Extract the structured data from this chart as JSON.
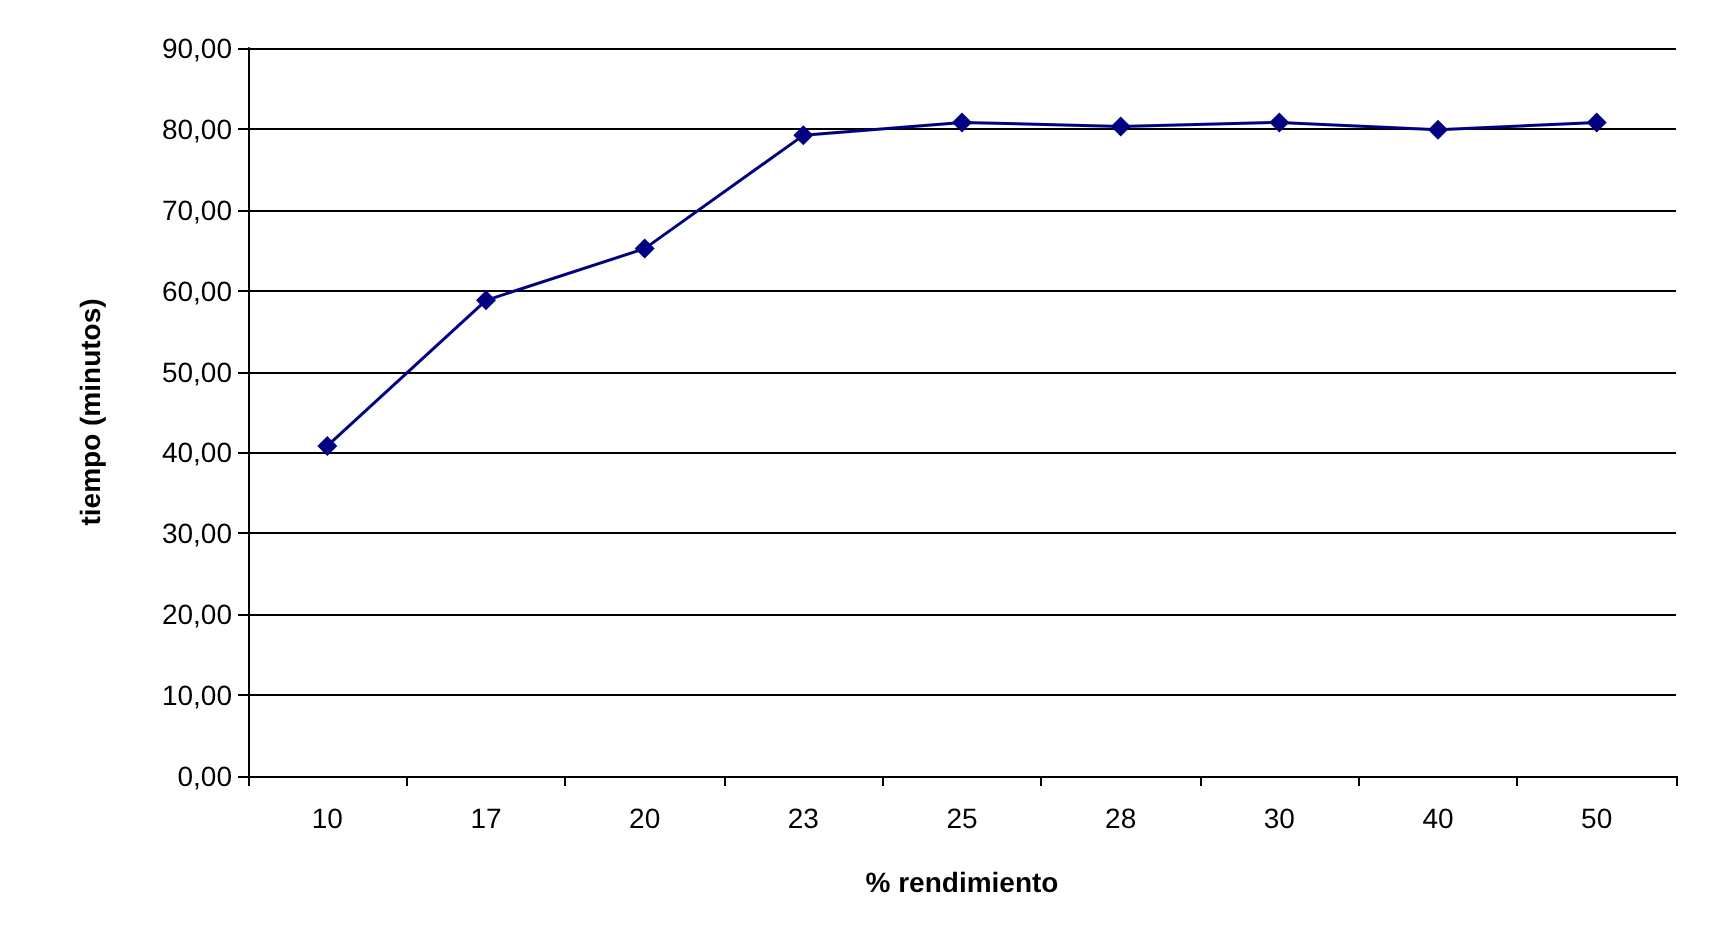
{
  "chart_data": {
    "type": "line",
    "xlabel": "% rendimiento",
    "ylabel": "tiempo (minutos)",
    "categories": [
      "10",
      "17",
      "20",
      "23",
      "25",
      "28",
      "30",
      "40",
      "50"
    ],
    "series": [
      {
        "color": "#000080",
        "values": [
          40.8,
          58.8,
          65.2,
          79.2,
          80.8,
          80.3,
          80.8,
          79.9,
          80.8
        ]
      }
    ],
    "ylim": [
      0,
      90
    ],
    "yticks": [
      {
        "value": 0,
        "label": "0,00"
      },
      {
        "value": 10,
        "label": "10,00"
      },
      {
        "value": 20,
        "label": "20,00"
      },
      {
        "value": 30,
        "label": "30,00"
      },
      {
        "value": 40,
        "label": "40,00"
      },
      {
        "value": 50,
        "label": "50,00"
      },
      {
        "value": 60,
        "label": "60,00"
      },
      {
        "value": 70,
        "label": "70,00"
      },
      {
        "value": 80,
        "label": "80,00"
      },
      {
        "value": 90,
        "label": "90,00"
      }
    ],
    "grid": "y",
    "marker": "diamond",
    "line_style": "solid"
  }
}
